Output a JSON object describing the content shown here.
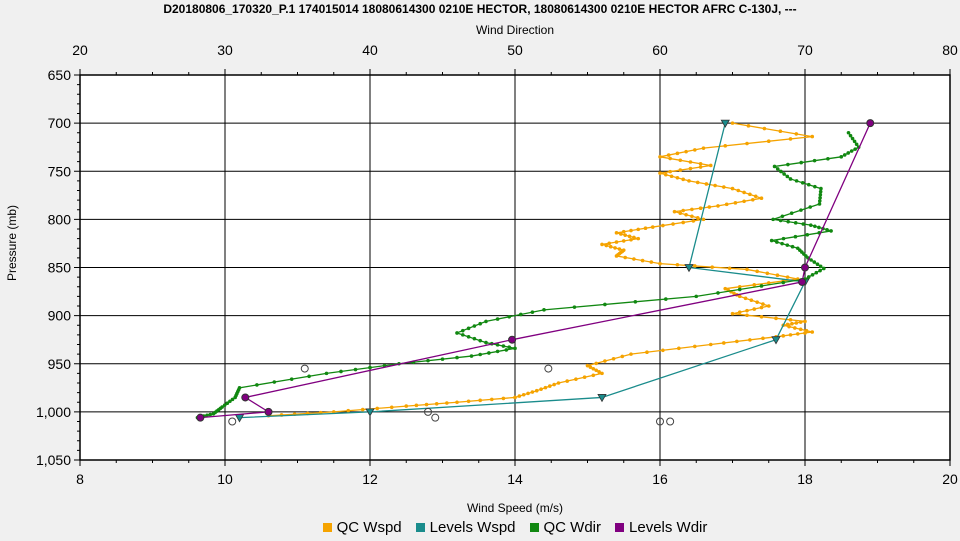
{
  "chart_data": {
    "type": "line",
    "title": "D20180806_170320_P.1 174015014 18080614300 0210E HECTOR, 18080614300 0210E HECTOR AFRC C-130J, ---",
    "top_axis": {
      "label": "Wind Direction",
      "range": [
        20,
        80
      ],
      "ticks": [
        "20",
        "30",
        "40",
        "50",
        "60",
        "70",
        "80"
      ]
    },
    "bottom_axis": {
      "label": "Wind Speed (m/s)",
      "range": [
        8,
        20
      ],
      "ticks": [
        "8",
        "10",
        "12",
        "14",
        "16",
        "18",
        "20"
      ]
    },
    "y_axis": {
      "label": "Pressure (mb)",
      "range": [
        650,
        1050
      ],
      "inverted": true,
      "ticks": [
        "650",
        "700",
        "750",
        "800",
        "850",
        "900",
        "950",
        "1,000",
        "1,050"
      ]
    },
    "grid": true,
    "legend_position": "bottom",
    "series": [
      {
        "name": "QC Wspd",
        "color": "#f5a300",
        "axis": "bottom",
        "points": [
          [
            17.0,
            700
          ],
          [
            18.1,
            714
          ],
          [
            16.6,
            726
          ],
          [
            16.0,
            735
          ],
          [
            16.7,
            744
          ],
          [
            16.0,
            752
          ],
          [
            16.4,
            760
          ],
          [
            17.0,
            768
          ],
          [
            17.4,
            778
          ],
          [
            16.8,
            786
          ],
          [
            16.2,
            792
          ],
          [
            16.6,
            800
          ],
          [
            15.9,
            808
          ],
          [
            15.4,
            814
          ],
          [
            15.7,
            820
          ],
          [
            15.2,
            826
          ],
          [
            15.5,
            832
          ],
          [
            15.4,
            838
          ],
          [
            16.0,
            846
          ],
          [
            17.2,
            852
          ],
          [
            17.9,
            862
          ],
          [
            16.9,
            872
          ],
          [
            17.1,
            880
          ],
          [
            17.5,
            890
          ],
          [
            17.0,
            898
          ],
          [
            18.0,
            906
          ],
          [
            17.7,
            910
          ],
          [
            18.1,
            917
          ],
          [
            17.6,
            922
          ],
          [
            16.7,
            930
          ],
          [
            15.6,
            940
          ],
          [
            15.0,
            952
          ],
          [
            15.2,
            960
          ],
          [
            14.6,
            970
          ],
          [
            14.3,
            978
          ],
          [
            14.0,
            985
          ],
          [
            13.2,
            990
          ],
          [
            12.5,
            994
          ],
          [
            11.5,
            1000
          ],
          [
            10.6,
            1004
          ]
        ]
      },
      {
        "name": "Levels Wspd",
        "color": "#1a8c8c",
        "axis": "bottom",
        "points": [
          [
            16.9,
            700
          ],
          [
            16.4,
            850
          ],
          [
            18.0,
            865
          ],
          [
            17.6,
            925
          ],
          [
            15.2,
            985
          ],
          [
            12.0,
            1000
          ],
          [
            10.2,
            1006
          ]
        ]
      },
      {
        "name": "QC Wdir",
        "color": "#118811",
        "axis": "top",
        "points": [
          [
            73.0,
            710
          ],
          [
            73.7,
            725
          ],
          [
            72.5,
            735
          ],
          [
            67.9,
            745
          ],
          [
            69.0,
            758
          ],
          [
            71.1,
            768
          ],
          [
            71.0,
            784
          ],
          [
            67.8,
            800
          ],
          [
            70.4,
            806
          ],
          [
            71.8,
            812
          ],
          [
            67.7,
            822
          ],
          [
            69.5,
            830
          ],
          [
            70.2,
            840
          ],
          [
            71.3,
            851
          ],
          [
            70.0,
            862
          ],
          [
            62.5,
            880
          ],
          [
            52.0,
            894
          ],
          [
            48.0,
            906
          ],
          [
            46.0,
            918
          ],
          [
            48.0,
            928
          ],
          [
            50.0,
            934
          ],
          [
            47.0,
            942
          ],
          [
            42.0,
            950
          ],
          [
            37.0,
            960
          ],
          [
            31.0,
            975
          ],
          [
            30.7,
            985
          ],
          [
            29.8,
            995
          ],
          [
            29.2,
            1002
          ],
          [
            28.1,
            1006
          ]
        ]
      },
      {
        "name": "Levels Wdir",
        "color": "#800080",
        "axis": "top",
        "points": [
          [
            74.5,
            700
          ],
          [
            70.0,
            850
          ],
          [
            69.8,
            865
          ],
          [
            49.8,
            925
          ],
          [
            31.4,
            985
          ],
          [
            33.0,
            1000
          ],
          [
            28.3,
            1006
          ]
        ]
      }
    ],
    "unmatched_markers_top": [
      [
        35.5,
        955
      ],
      [
        52.3,
        955
      ],
      [
        60.0,
        1010
      ],
      [
        60.7,
        1010
      ]
    ],
    "unmatched_markers_bottom": [
      [
        12.8,
        1000
      ],
      [
        12.9,
        1006
      ],
      [
        10.1,
        1010
      ]
    ]
  }
}
